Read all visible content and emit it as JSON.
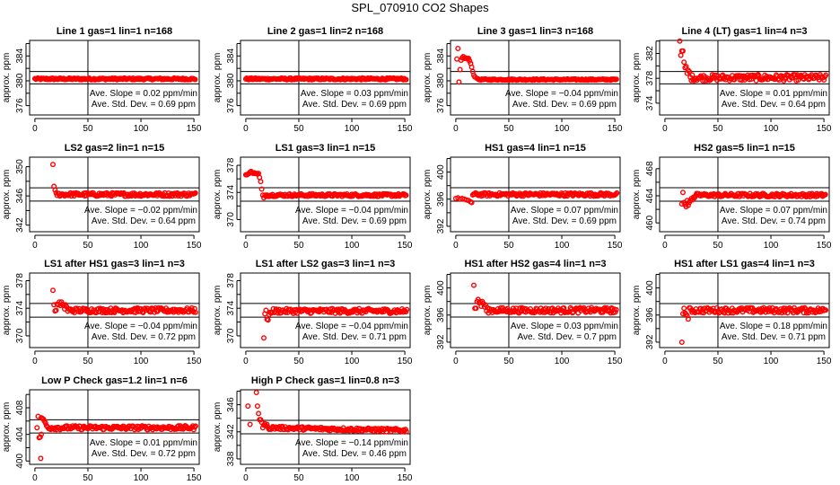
{
  "title": "SPL_070910  CO2 Shapes",
  "chart_data": [
    {
      "type": "scatter",
      "title": "Line 1 gas=1 lin=1 n=168",
      "ylabel": "approx. ppm",
      "xlim": [
        -5,
        155
      ],
      "xticks": [
        0,
        50,
        100,
        150
      ],
      "ylim": [
        374.5,
        386.5
      ],
      "yticks": [
        376,
        380,
        384
      ],
      "hlines": [
        381.5,
        379.5
      ],
      "vline": 50,
      "slope_text": "Ave. Slope =  0.02  ppm/min",
      "std_text": "Ave. Std. Dev. =  0.69  ppm",
      "points": [],
      "steady": {
        "from": 0,
        "to": 152,
        "mean": 380.3,
        "jitter": 0.15
      }
    },
    {
      "type": "scatter",
      "title": "Line 2 gas=1 lin=2 n=168",
      "ylabel": "approx. ppm",
      "xlim": [
        -5,
        155
      ],
      "xticks": [
        0,
        50,
        100,
        150
      ],
      "ylim": [
        374.5,
        386.5
      ],
      "yticks": [
        376,
        380,
        384
      ],
      "hlines": [
        381.5,
        379.5
      ],
      "vline": 50,
      "slope_text": "Ave. Slope =  0.03  ppm/min",
      "std_text": "Ave. Std. Dev. =  0.69  ppm",
      "points": [],
      "steady": {
        "from": 0,
        "to": 152,
        "mean": 380.3,
        "jitter": 0.15
      }
    },
    {
      "type": "scatter",
      "title": "Line 3 gas=1 lin=3 n=168",
      "ylabel": "approx. ppm",
      "xlim": [
        -5,
        155
      ],
      "xticks": [
        0,
        50,
        100,
        150
      ],
      "ylim": [
        374.5,
        386.5
      ],
      "yticks": [
        376,
        380,
        384
      ],
      "hlines": [
        381.5,
        379.5
      ],
      "vline": 50,
      "slope_text": "Ave. Slope =  −0.04  ppm/min",
      "std_text": "Ave. Std. Dev. =  0.69  ppm",
      "points": [
        [
          1,
          383.5
        ],
        [
          2,
          385.2
        ],
        [
          3,
          379.8
        ],
        [
          4,
          381.8
        ],
        [
          5,
          383.3
        ],
        [
          6,
          383.7
        ],
        [
          7,
          383.9
        ],
        [
          8,
          383.6
        ],
        [
          9,
          383.7
        ],
        [
          10,
          383.6
        ],
        [
          11,
          383.5
        ],
        [
          12,
          383.6
        ],
        [
          13,
          383.2
        ],
        [
          14,
          382.8
        ],
        [
          15,
          382.2
        ],
        [
          16,
          381.5
        ],
        [
          17,
          380.9
        ],
        [
          18,
          380.6
        ],
        [
          20,
          380.4
        ]
      ],
      "steady": {
        "from": 21,
        "to": 152,
        "mean": 380.2,
        "jitter": 0.1
      }
    },
    {
      "type": "scatter",
      "title": "Line 4 (LT) gas=1 lin=4 n=3",
      "ylabel": "approx. ppm",
      "xlim": [
        -5,
        155
      ],
      "xticks": [
        0,
        50,
        100,
        150
      ],
      "ylim": [
        372.1,
        384.1
      ],
      "yticks": [
        374,
        378,
        382
      ],
      "hlines": [
        379.1,
        377.1
      ],
      "vline": 50,
      "slope_text": "Ave. Slope =  0.01  ppm/min",
      "std_text": "Ave. Std. Dev. =  0.64  ppm",
      "points": [
        [
          14,
          384
        ],
        [
          15,
          381.7
        ],
        [
          16,
          382.4
        ],
        [
          17,
          382.4
        ],
        [
          18,
          380.6
        ],
        [
          19,
          379.7
        ],
        [
          20,
          379.9
        ],
        [
          21,
          378.8
        ],
        [
          22,
          379.3
        ],
        [
          23,
          379.1
        ]
      ],
      "steady": {
        "from": 24,
        "to": 152,
        "mean": 378.1,
        "jitter": 0.5
      }
    },
    {
      "type": "scatter",
      "title": "LS2 gas=2 lin=1 n=15",
      "ylabel": "approx. ppm",
      "xlim": [
        -5,
        155
      ],
      "xticks": [
        0,
        50,
        100,
        150
      ],
      "ylim": [
        341.1,
        351.3
      ],
      "yticks": [
        342,
        346,
        350
      ],
      "hlines": [
        347.1,
        345.3
      ],
      "vline": 50,
      "slope_text": "Ave. Slope =  −0.02  ppm/min",
      "std_text": "Ave. Std. Dev. =  0.64  ppm",
      "points": [
        [
          17,
          350.3
        ],
        [
          18,
          347.3
        ],
        [
          19,
          346.8
        ]
      ],
      "steady": {
        "from": 20,
        "to": 152,
        "mean": 346.2,
        "jitter": 0.25
      }
    },
    {
      "type": "scatter",
      "title": "LS1 gas=3 lin=1 n=15",
      "ylabel": "approx. ppm",
      "xlim": [
        -5,
        155
      ],
      "xticks": [
        0,
        50,
        100,
        150
      ],
      "ylim": [
        368.2,
        379.2
      ],
      "yticks": [
        370,
        374,
        378
      ],
      "hlines": [
        374.7,
        372.7
      ],
      "vline": 50,
      "slope_text": "Ave. Slope =  −0.04  ppm/min",
      "std_text": "Ave. Std. Dev. =  0.69  ppm",
      "points": [
        [
          0,
          376.6
        ],
        [
          1,
          376.6
        ],
        [
          2,
          376.7
        ],
        [
          3,
          376.8
        ],
        [
          4,
          377
        ],
        [
          5,
          377.1
        ],
        [
          6,
          376.9
        ],
        [
          7,
          376.8
        ],
        [
          8,
          376.9
        ],
        [
          9,
          376.8
        ],
        [
          10,
          376.8
        ],
        [
          11,
          376.7
        ],
        [
          12,
          376.8
        ],
        [
          13,
          376.2
        ],
        [
          14,
          375.6
        ],
        [
          15,
          374.5
        ],
        [
          16,
          373.6
        ],
        [
          17,
          373.2
        ]
      ],
      "steady": {
        "from": 18,
        "to": 152,
        "mean": 373.6,
        "jitter": 0.2
      }
    },
    {
      "type": "scatter",
      "title": "HS1 gas=4 lin=1 n=15",
      "ylabel": "approx. ppm",
      "xlim": [
        -5,
        155
      ],
      "xticks": [
        0,
        50,
        100,
        150
      ],
      "ylim": [
        391.2,
        402.2
      ],
      "yticks": [
        392,
        396,
        400
      ],
      "hlines": [
        397.7,
        395.7
      ],
      "vline": 50,
      "slope_text": "Ave. Slope =  0.07  ppm/min",
      "std_text": "Ave. Std. Dev. =  0.69  ppm",
      "points": [
        [
          0,
          396.1
        ],
        [
          2,
          396.2
        ],
        [
          4,
          396.0
        ],
        [
          6,
          396.1
        ],
        [
          8,
          396.0
        ],
        [
          10,
          395.9
        ],
        [
          12,
          395.8
        ],
        [
          14,
          395.6
        ],
        [
          15,
          395.5
        ]
      ],
      "steady": {
        "from": 16,
        "to": 152,
        "mean": 396.7,
        "jitter": 0.25
      }
    },
    {
      "type": "scatter",
      "title": "HS2 gas=5 lin=1 n=15",
      "ylabel": "approx. ppm",
      "xlim": [
        -5,
        155
      ],
      "xticks": [
        0,
        50,
        100,
        150
      ],
      "ylim": [
        458.7,
        469.7
      ],
      "yticks": [
        460,
        464,
        468
      ],
      "hlines": [
        465.2,
        463.2
      ],
      "vline": 50,
      "slope_text": "Ave. Slope =  0.07  ppm/min",
      "std_text": "Ave. Std. Dev. =  0.74  ppm",
      "points": [
        [
          16,
          462.8
        ],
        [
          17,
          464.5
        ],
        [
          18,
          463
        ],
        [
          19,
          462.7
        ],
        [
          20,
          462.4
        ],
        [
          21,
          463.3
        ],
        [
          22,
          462.6
        ],
        [
          23,
          463
        ],
        [
          24,
          463.3
        ],
        [
          25,
          463.6
        ],
        [
          26,
          463.4
        ],
        [
          27,
          463.8
        ],
        [
          28,
          463.7
        ]
      ],
      "steady": {
        "from": 29,
        "to": 152,
        "mean": 464.1,
        "jitter": 0.25
      }
    },
    {
      "type": "scatter",
      "title": "LS1 after HS1 gas=3 lin=1 n=3",
      "ylabel": "approx. ppm",
      "xlim": [
        -5,
        155
      ],
      "xticks": [
        0,
        50,
        100,
        150
      ],
      "ylim": [
        368.3,
        379.1
      ],
      "yticks": [
        370,
        374,
        378
      ],
      "hlines": [
        374.7,
        372.7
      ],
      "vline": 50,
      "slope_text": "Ave. Slope =  −0.04  ppm/min",
      "std_text": "Ave. Std. Dev. =  0.72  ppm",
      "points": [
        [
          17,
          376.6
        ],
        [
          18,
          374.5
        ],
        [
          19,
          373.6
        ],
        [
          20,
          373.7
        ],
        [
          21,
          374.6
        ],
        [
          22,
          374.5
        ],
        [
          23,
          374.9
        ],
        [
          24,
          374.4
        ],
        [
          25,
          374.9
        ],
        [
          26,
          374.6
        ],
        [
          27,
          374.4
        ],
        [
          28,
          373.9
        ],
        [
          29,
          374.5
        ],
        [
          30,
          374.2
        ]
      ],
      "steady": {
        "from": 31,
        "to": 152,
        "mean": 373.7,
        "jitter": 0.35
      }
    },
    {
      "type": "scatter",
      "title": "LS1 after LS2 gas=3 lin=1 n=3",
      "ylabel": "approx. ppm",
      "xlim": [
        -5,
        155
      ],
      "xticks": [
        0,
        50,
        100,
        150
      ],
      "ylim": [
        368.3,
        379.1
      ],
      "yticks": [
        370,
        374,
        378
      ],
      "hlines": [
        374.7,
        372.7
      ],
      "vline": 50,
      "slope_text": "Ave. Slope =  −0.04  ppm/min",
      "std_text": "Ave. Std. Dev. =  0.71  ppm",
      "points": [
        [
          17,
          369.7
        ],
        [
          18,
          373.2
        ],
        [
          19,
          373.7
        ],
        [
          20,
          372.4
        ],
        [
          21,
          372.3
        ],
        [
          22,
          373.1
        ],
        [
          23,
          373.4
        ],
        [
          24,
          373.3
        ]
      ],
      "steady": {
        "from": 25,
        "to": 152,
        "mean": 373.6,
        "jitter": 0.35
      }
    },
    {
      "type": "scatter",
      "title": "HS1 after HS2 gas=4 lin=1 n=3",
      "ylabel": "approx. ppm",
      "xlim": [
        -5,
        155
      ],
      "xticks": [
        0,
        50,
        100,
        150
      ],
      "ylim": [
        391.2,
        402.2
      ],
      "yticks": [
        392,
        396,
        400
      ],
      "hlines": [
        397.7,
        395.7
      ],
      "vline": 50,
      "slope_text": "Ave. Slope =  0.03  ppm/min",
      "std_text": "Ave. Std. Dev. =  0.7  ppm",
      "points": [
        [
          17,
          400.4
        ],
        [
          18,
          397.0
        ],
        [
          19,
          397.0
        ],
        [
          20,
          398.0
        ],
        [
          21,
          398.3
        ],
        [
          22,
          397.8
        ],
        [
          23,
          398
        ],
        [
          24,
          397.3
        ],
        [
          25,
          398
        ],
        [
          26,
          397.7
        ],
        [
          27,
          397.2
        ],
        [
          28,
          397.5
        ]
      ],
      "steady": {
        "from": 29,
        "to": 152,
        "mean": 396.7,
        "jitter": 0.4
      }
    },
    {
      "type": "scatter",
      "title": "HS1 after LS1 gas=4 lin=1 n=3",
      "ylabel": "approx. ppm",
      "xlim": [
        -5,
        155
      ],
      "xticks": [
        0,
        50,
        100,
        150
      ],
      "ylim": [
        391.2,
        402.2
      ],
      "yticks": [
        392,
        396,
        400
      ],
      "hlines": [
        397.7,
        395.7
      ],
      "vline": 50,
      "slope_text": "Ave. Slope =  0.18  ppm/min",
      "std_text": "Ave. Std. Dev. =  0.71  ppm",
      "points": [
        [
          16,
          392
        ],
        [
          17,
          396.2
        ],
        [
          18,
          397
        ],
        [
          19,
          396.3
        ],
        [
          20,
          396.1
        ],
        [
          21,
          395.9
        ],
        [
          22,
          395.4
        ]
      ],
      "steady": {
        "from": 23,
        "to": 152,
        "mean": 396.7,
        "jitter": 0.4
      }
    },
    {
      "type": "scatter",
      "title": "Low P Check gas=1.2 lin=1 n=6",
      "ylabel": "approx. ppm",
      "xlim": [
        -5,
        155
      ],
      "xticks": [
        0,
        50,
        100,
        150
      ],
      "ylim": [
        399.5,
        410.7
      ],
      "yticks": [
        400,
        404,
        408
      ],
      "hlines": [
        406.2,
        404.2
      ],
      "vline": 50,
      "slope_text": "Ave. Slope =  0.01  ppm/min",
      "std_text": "Ave. Std. Dev. =  0.72  ppm",
      "points": [
        [
          2,
          405
        ],
        [
          3,
          406.7
        ],
        [
          4,
          403.5
        ],
        [
          5,
          403.6
        ],
        [
          6,
          404
        ],
        [
          5.5,
          400.4
        ],
        [
          6,
          406.5
        ],
        [
          7,
          406.4
        ],
        [
          8,
          406.3
        ],
        [
          9,
          406.0
        ],
        [
          10,
          405.7
        ],
        [
          11,
          405.3
        ],
        [
          12,
          405.1
        ]
      ],
      "steady": {
        "from": 13,
        "to": 152,
        "mean": 405.0,
        "jitter": 0.3
      }
    },
    {
      "type": "scatter",
      "title": "High P Check gas=1 lin=0.8 n=3",
      "ylabel": "approx. ppm",
      "xlim": [
        -5,
        155
      ],
      "xticks": [
        0,
        50,
        100,
        150
      ],
      "ylim": [
        337.2,
        348.2
      ],
      "yticks": [
        338,
        342,
        346
      ],
      "hlines": [
        343.7,
        341.7
      ],
      "vline": 50,
      "slope_text": "Ave. Slope =  −0.14  ppm/min",
      "std_text": "Ave. Std. Dev. =  0.46  ppm",
      "points": [
        [
          2,
          345.8
        ],
        [
          4,
          343.1
        ],
        [
          10,
          347.8
        ],
        [
          11,
          345.8
        ],
        [
          12,
          344.7
        ],
        [
          13,
          343.8
        ],
        [
          14,
          343.8
        ],
        [
          15,
          343.4
        ],
        [
          16,
          342.6
        ],
        [
          17,
          343.0
        ],
        [
          18,
          343.2
        ],
        [
          19,
          342.9
        ],
        [
          20,
          343.1
        ]
      ],
      "steady": {
        "from": 21,
        "to": 152,
        "mean": 342.6,
        "jitter": 0.25,
        "end_mean": 342.2
      }
    }
  ],
  "colors": {
    "points": "#ff0000",
    "axes": "#000000"
  }
}
